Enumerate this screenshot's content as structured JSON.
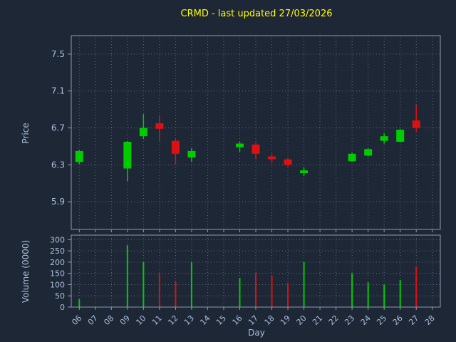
{
  "title": "CRMD - last updated 27/03/2026",
  "colors": {
    "background": "#1e2736",
    "title": "#ffff00",
    "label": "#a7c0dc",
    "axis": "#8a9bb0",
    "grid": "#56687e",
    "up": "#00cc00",
    "down": "#dd1111"
  },
  "chart_data": {
    "type": "candlestick+volume",
    "title": "CRMD - last updated 27/03/2026",
    "xlabel": "Day",
    "ylabel_price": "Price",
    "ylabel_volume": "Volume (0000)",
    "x_tick_labels": [
      "06",
      "07",
      "08",
      "09",
      "10",
      "11",
      "12",
      "13",
      "14",
      "15",
      "16",
      "17",
      "18",
      "19",
      "20",
      "21",
      "22",
      "23",
      "24",
      "25",
      "26",
      "27",
      "28"
    ],
    "x_tick_days": [
      6,
      7,
      8,
      9,
      10,
      11,
      12,
      13,
      14,
      15,
      16,
      17,
      18,
      19,
      20,
      21,
      22,
      23,
      24,
      25,
      26,
      27,
      28
    ],
    "x_range": [
      5.5,
      28.5
    ],
    "price_ticks": [
      "5.9",
      "6.3",
      "6.7",
      "7.1",
      "7.5"
    ],
    "price_tick_values": [
      5.9,
      6.3,
      6.7,
      7.1,
      7.5
    ],
    "price_range": [
      5.6,
      7.7
    ],
    "volume_ticks": [
      "0",
      "50",
      "100",
      "150",
      "200",
      "250",
      "300"
    ],
    "volume_tick_values": [
      0,
      50,
      100,
      150,
      200,
      250,
      300
    ],
    "volume_range": [
      0,
      320
    ],
    "grid": true,
    "candles": [
      {
        "day": 6,
        "open": 6.33,
        "high": 6.46,
        "low": 6.31,
        "close": 6.45,
        "volume": 35
      },
      {
        "day": 9,
        "open": 6.26,
        "high": 6.56,
        "low": 6.12,
        "close": 6.55,
        "volume": 275
      },
      {
        "day": 10,
        "open": 6.61,
        "high": 6.85,
        "low": 6.58,
        "close": 6.7,
        "volume": 200
      },
      {
        "day": 11,
        "open": 6.75,
        "high": 6.84,
        "low": 6.56,
        "close": 6.69,
        "volume": 150
      },
      {
        "day": 12,
        "open": 6.56,
        "high": 6.58,
        "low": 6.31,
        "close": 6.42,
        "volume": 115
      },
      {
        "day": 13,
        "open": 6.38,
        "high": 6.48,
        "low": 6.33,
        "close": 6.45,
        "volume": 200
      },
      {
        "day": 16,
        "open": 6.49,
        "high": 6.55,
        "low": 6.44,
        "close": 6.53,
        "volume": 130
      },
      {
        "day": 17,
        "open": 6.52,
        "high": 6.54,
        "low": 6.36,
        "close": 6.42,
        "volume": 150
      },
      {
        "day": 18,
        "open": 6.39,
        "high": 6.42,
        "low": 6.32,
        "close": 6.36,
        "volume": 140
      },
      {
        "day": 19,
        "open": 6.36,
        "high": 6.38,
        "low": 6.27,
        "close": 6.3,
        "volume": 108
      },
      {
        "day": 20,
        "open": 6.21,
        "high": 6.27,
        "low": 6.18,
        "close": 6.24,
        "volume": 200
      },
      {
        "day": 23,
        "open": 6.34,
        "high": 6.43,
        "low": 6.33,
        "close": 6.42,
        "volume": 150
      },
      {
        "day": 24,
        "open": 6.4,
        "high": 6.48,
        "low": 6.39,
        "close": 6.47,
        "volume": 110
      },
      {
        "day": 25,
        "open": 6.56,
        "high": 6.64,
        "low": 6.53,
        "close": 6.61,
        "volume": 100
      },
      {
        "day": 26,
        "open": 6.55,
        "high": 6.69,
        "low": 6.54,
        "close": 6.68,
        "volume": 120
      },
      {
        "day": 27,
        "open": 6.78,
        "high": 6.95,
        "low": 6.66,
        "close": 6.7,
        "volume": 180
      }
    ]
  }
}
